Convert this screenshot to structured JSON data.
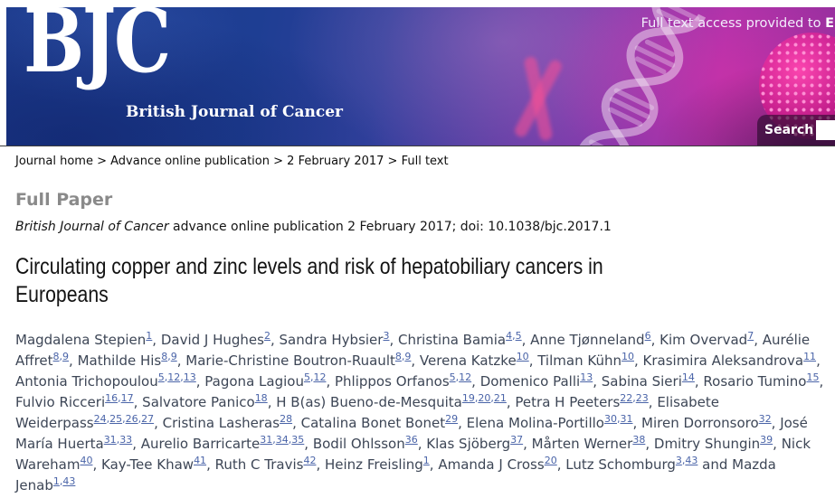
{
  "header": {
    "logo_main": "BJC",
    "logo_sub": "British Journal of Cancer",
    "access_prefix": "Full text access provided to ",
    "access_highlight": "E",
    "search_label": "Search",
    "search_value": "",
    "colors": {
      "brand_blue": "#1d3e92",
      "brand_magenta": "#a634ab",
      "affiliation_link_blue": "#4a64a8",
      "section_label_gray": "#8a8a8a"
    }
  },
  "breadcrumb": {
    "separator": ">",
    "items": [
      "Journal home",
      "Advance online publication",
      "2 February 2017",
      "Full text"
    ]
  },
  "article": {
    "section_label": "Full Paper",
    "citation_journal": "British Journal of Cancer",
    "citation_rest": " advance online publication 2 February 2017; doi: 10.1038/bjc.2017.1",
    "title": "Circulating copper and zinc levels and risk of hepatobiliary cancers in Europeans",
    "author_separator": ", ",
    "affil_separator": ",",
    "conjunction": "and",
    "authors": [
      {
        "name": "Magdalena Stepien",
        "affils": [
          "1"
        ]
      },
      {
        "name": "David J Hughes",
        "affils": [
          "2"
        ]
      },
      {
        "name": "Sandra Hybsier",
        "affils": [
          "3"
        ]
      },
      {
        "name": "Christina Bamia",
        "affils": [
          "4",
          "5"
        ]
      },
      {
        "name": "Anne Tjønneland",
        "affils": [
          "6"
        ]
      },
      {
        "name": "Kim Overvad",
        "affils": [
          "7"
        ]
      },
      {
        "name": "Aurélie Affret",
        "affils": [
          "8",
          "9"
        ]
      },
      {
        "name": "Mathilde His",
        "affils": [
          "8",
          "9"
        ]
      },
      {
        "name": "Marie-Christine Boutron-Ruault",
        "affils": [
          "8",
          "9"
        ]
      },
      {
        "name": "Verena Katzke",
        "affils": [
          "10"
        ]
      },
      {
        "name": "Tilman Kühn",
        "affils": [
          "10"
        ]
      },
      {
        "name": "Krasimira Aleksandrova",
        "affils": [
          "11"
        ]
      },
      {
        "name": "Antonia Trichopoulou",
        "affils": [
          "5",
          "12",
          "13"
        ]
      },
      {
        "name": "Pagona Lagiou",
        "affils": [
          "5",
          "12"
        ]
      },
      {
        "name": "Phlippos Orfanos",
        "affils": [
          "5",
          "12"
        ]
      },
      {
        "name": "Domenico Palli",
        "affils": [
          "13"
        ]
      },
      {
        "name": "Sabina Sieri",
        "affils": [
          "14"
        ]
      },
      {
        "name": "Rosario Tumino",
        "affils": [
          "15"
        ]
      },
      {
        "name": "Fulvio Ricceri",
        "affils": [
          "16",
          "17"
        ]
      },
      {
        "name": "Salvatore Panico",
        "affils": [
          "18"
        ]
      },
      {
        "name": "H B(as) Bueno-de-Mesquita",
        "affils": [
          "19",
          "20",
          "21"
        ]
      },
      {
        "name": "Petra H Peeters",
        "affils": [
          "22",
          "23"
        ]
      },
      {
        "name": "Elisabete Weiderpass",
        "affils": [
          "24",
          "25",
          "26",
          "27"
        ]
      },
      {
        "name": "Cristina Lasheras",
        "affils": [
          "28"
        ]
      },
      {
        "name": "Catalina Bonet Bonet",
        "affils": [
          "29"
        ]
      },
      {
        "name": "Elena Molina-Portillo",
        "affils": [
          "30",
          "31"
        ]
      },
      {
        "name": "Miren Dorronsoro",
        "affils": [
          "32"
        ]
      },
      {
        "name": "José María Huerta",
        "affils": [
          "31",
          "33"
        ]
      },
      {
        "name": "Aurelio Barricarte",
        "affils": [
          "31",
          "34",
          "35"
        ]
      },
      {
        "name": "Bodil Ohlsson",
        "affils": [
          "36"
        ]
      },
      {
        "name": "Klas Sjöberg",
        "affils": [
          "37"
        ]
      },
      {
        "name": "Mårten Werner",
        "affils": [
          "38"
        ]
      },
      {
        "name": "Dmitry Shungin",
        "affils": [
          "39"
        ]
      },
      {
        "name": "Nick Wareham",
        "affils": [
          "40"
        ]
      },
      {
        "name": "Kay-Tee Khaw",
        "affils": [
          "41"
        ]
      },
      {
        "name": "Ruth C Travis",
        "affils": [
          "42"
        ]
      },
      {
        "name": "Heinz Freisling",
        "affils": [
          "1"
        ]
      },
      {
        "name": "Amanda J Cross",
        "affils": [
          "20"
        ]
      },
      {
        "name": "Lutz Schomburg",
        "affils": [
          "3",
          "43"
        ]
      },
      {
        "name": "Mazda Jenab",
        "affils": [
          "1",
          "43"
        ]
      }
    ]
  }
}
